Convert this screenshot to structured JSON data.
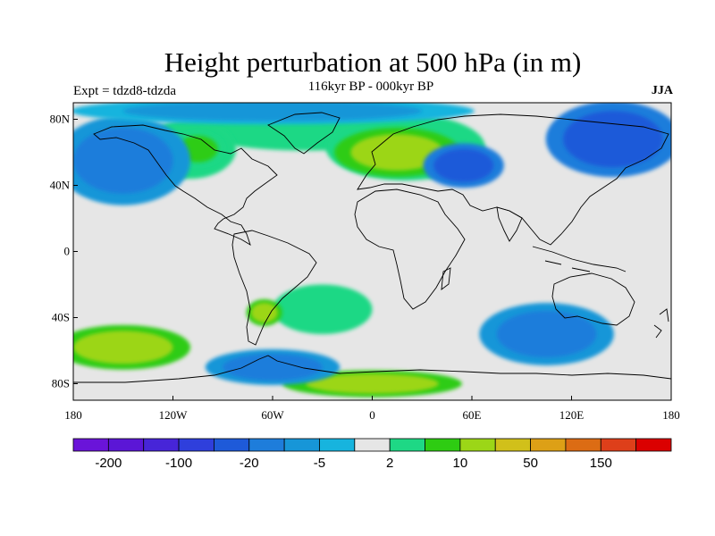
{
  "title": "Height perturbation at 500 hPa (in m)",
  "subtitle": "116kyr BP - 000kyr BP",
  "experiment": "Expt = tdzd8-tdzda",
  "season": "JJA",
  "map": {
    "projection": "cylindrical-equidistant",
    "lon_range": [
      -180,
      180
    ],
    "lat_range": [
      -90,
      90
    ],
    "lat_ticks": [
      {
        "value": 80,
        "label": "80N"
      },
      {
        "value": 40,
        "label": "40N"
      },
      {
        "value": 0,
        "label": "0"
      },
      {
        "value": -40,
        "label": "40S"
      },
      {
        "value": -80,
        "label": "80S"
      }
    ],
    "lon_ticks": [
      {
        "value": -180,
        "label": "180"
      },
      {
        "value": -120,
        "label": "120W"
      },
      {
        "value": -60,
        "label": "60W"
      },
      {
        "value": 0,
        "label": "0"
      },
      {
        "value": 60,
        "label": "60E"
      },
      {
        "value": 120,
        "label": "120E"
      },
      {
        "value": 180,
        "label": "180"
      }
    ],
    "background_color": "#e6e6e6",
    "features": [
      {
        "name": "n-atlantic-green",
        "lon": -40,
        "lat": 75,
        "rx": 70,
        "ry": 14,
        "level": 9
      },
      {
        "name": "canada-green",
        "lon": -110,
        "lat": 62,
        "rx": 28,
        "ry": 18,
        "level": 9
      },
      {
        "name": "canada-yellow",
        "lon": -105,
        "lat": 62,
        "rx": 12,
        "ry": 8,
        "level": 10
      },
      {
        "name": "europe-green",
        "lon": 20,
        "lat": 63,
        "rx": 48,
        "ry": 20,
        "level": 9
      },
      {
        "name": "europe-yellow",
        "lon": 15,
        "lat": 60,
        "rx": 28,
        "ry": 11,
        "level": 11
      },
      {
        "name": "central-asia-blue",
        "lon": 55,
        "lat": 52,
        "rx": 18,
        "ry": 10,
        "level": 4
      },
      {
        "name": "siberia-blue",
        "lon": 145,
        "lat": 68,
        "rx": 30,
        "ry": 17,
        "level": 4
      },
      {
        "name": "pacific-blue",
        "lon": -150,
        "lat": 55,
        "rx": 30,
        "ry": 20,
        "level": 5
      },
      {
        "name": "arctic-blue",
        "lon": -60,
        "lat": 85,
        "rx": 90,
        "ry": 6,
        "level": 6
      },
      {
        "name": "s-pacific-yellow",
        "lon": -150,
        "lat": -58,
        "rx": 30,
        "ry": 10,
        "level": 11
      },
      {
        "name": "s-atlantic-green",
        "lon": -30,
        "lat": -35,
        "rx": 30,
        "ry": 15,
        "level": 9
      },
      {
        "name": "s-indian-blue",
        "lon": 105,
        "lat": -50,
        "rx": 30,
        "ry": 14,
        "level": 5
      },
      {
        "name": "antarctic-yellow",
        "lon": 0,
        "lat": -80,
        "rx": 40,
        "ry": 6,
        "level": 11
      },
      {
        "name": "s-america-yellow",
        "lon": -65,
        "lat": -37,
        "rx": 8,
        "ry": 6,
        "level": 11
      },
      {
        "name": "ross-sea-blue",
        "lon": -60,
        "lat": -70,
        "rx": 30,
        "ry": 8,
        "level": 5
      }
    ]
  },
  "colorbar": {
    "colors": [
      "#6a14d9",
      "#5b16d6",
      "#4725d8",
      "#2f3fdc",
      "#1e5ad9",
      "#1e7ddb",
      "#1796d8",
      "#17b4de",
      "#e6e6e6",
      "#1ed885",
      "#2ecc12",
      "#9cd617",
      "#d1c01a",
      "#dda016",
      "#dc6c14",
      "#de3f1a",
      "#db0000"
    ],
    "labels": [
      {
        "after_box": 1,
        "text": "-200"
      },
      {
        "after_box": 3,
        "text": "-100"
      },
      {
        "after_box": 5,
        "text": "-20"
      },
      {
        "after_box": 7,
        "text": "-5"
      },
      {
        "after_box": 9,
        "text": "2"
      },
      {
        "after_box": 11,
        "text": "10"
      },
      {
        "after_box": 13,
        "text": "50"
      },
      {
        "after_box": 15,
        "text": "150"
      }
    ]
  }
}
